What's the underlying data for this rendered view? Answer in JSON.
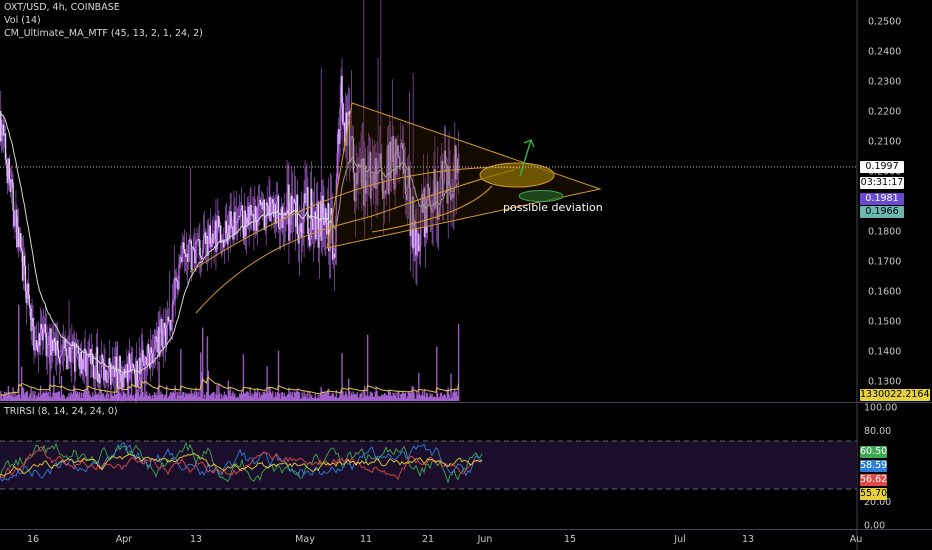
{
  "legend": {
    "symbol": "OXT/USD, 4h, COINBASE",
    "volume": "Vol (14)",
    "ma": "CM_Ultimate_MA_MTF (45, 13, 2, 1, 24, 2)",
    "rsi": "TRIRSI (8, 14, 24, 24, 0)"
  },
  "annotation": "possible deviation",
  "price_labels": {
    "last": "0.1997",
    "countdown": "03:31:17",
    "ma1": "0.1981",
    "ma2": "0.1966",
    "volume": "1330022.216483"
  },
  "rsi_labels": [
    "60.50",
    "58.59",
    "56.62",
    "55.70"
  ],
  "colors": {
    "candles": "#b36ae2",
    "ma_line": "#d8d8d8",
    "trendlines": "#d59a2a",
    "ma1_tag": "#6a4bd0",
    "ma2_tag": "#6ab8b0",
    "rsi1": "#3fa854",
    "rsi2": "#2f7fd8",
    "rsi3": "#e24a4a",
    "rsi4": "#e6d13a"
  },
  "chart_data": [
    {
      "type": "candlestick",
      "title": "OXT/USD, 4h, COINBASE",
      "x_ticks": [
        "16",
        "Apr",
        "13",
        "May",
        "11",
        "21",
        "Jun",
        "15",
        "Jul",
        "13",
        "Au"
      ],
      "y_ticks": [
        "0.2500",
        "0.2400",
        "0.2300",
        "0.2200",
        "0.2100",
        "0.2000",
        "0.1900",
        "0.1800",
        "0.1700",
        "0.1600",
        "0.1500",
        "0.1400",
        "0.1300"
      ],
      "ylim": [
        0.12,
        0.26
      ],
      "price_path": {
        "x": [
          "Mar 10",
          "Mar 16",
          "Mar 22",
          "Mar 30",
          "Apr 4",
          "Apr 9",
          "Apr 11",
          "Apr 16",
          "Apr 22",
          "Apr 29",
          "May 5",
          "May 8",
          "May 9",
          "May 12",
          "May 16",
          "May 20",
          "May 22",
          "May 25",
          "May 28",
          "May 30"
        ],
        "y": [
          0.22,
          0.145,
          0.14,
          0.133,
          0.134,
          0.15,
          0.17,
          0.178,
          0.183,
          0.187,
          0.184,
          0.178,
          0.225,
          0.195,
          0.198,
          0.205,
          0.18,
          0.19,
          0.199,
          0.1997
        ]
      },
      "last_price": 0.1997,
      "volume_last": 1330022.216483,
      "ma_values": [
        0.1981,
        0.1966
      ]
    },
    {
      "type": "line",
      "title": "TRIRSI (8, 14, 24, 24, 0)",
      "y_ticks": [
        "100.00",
        "80.00",
        "20.00",
        "0.00"
      ],
      "ylim": [
        0,
        100
      ],
      "series": [
        {
          "value": 60.5
        },
        {
          "value": 58.59
        },
        {
          "value": 56.62
        },
        {
          "value": 55.7
        }
      ]
    }
  ]
}
